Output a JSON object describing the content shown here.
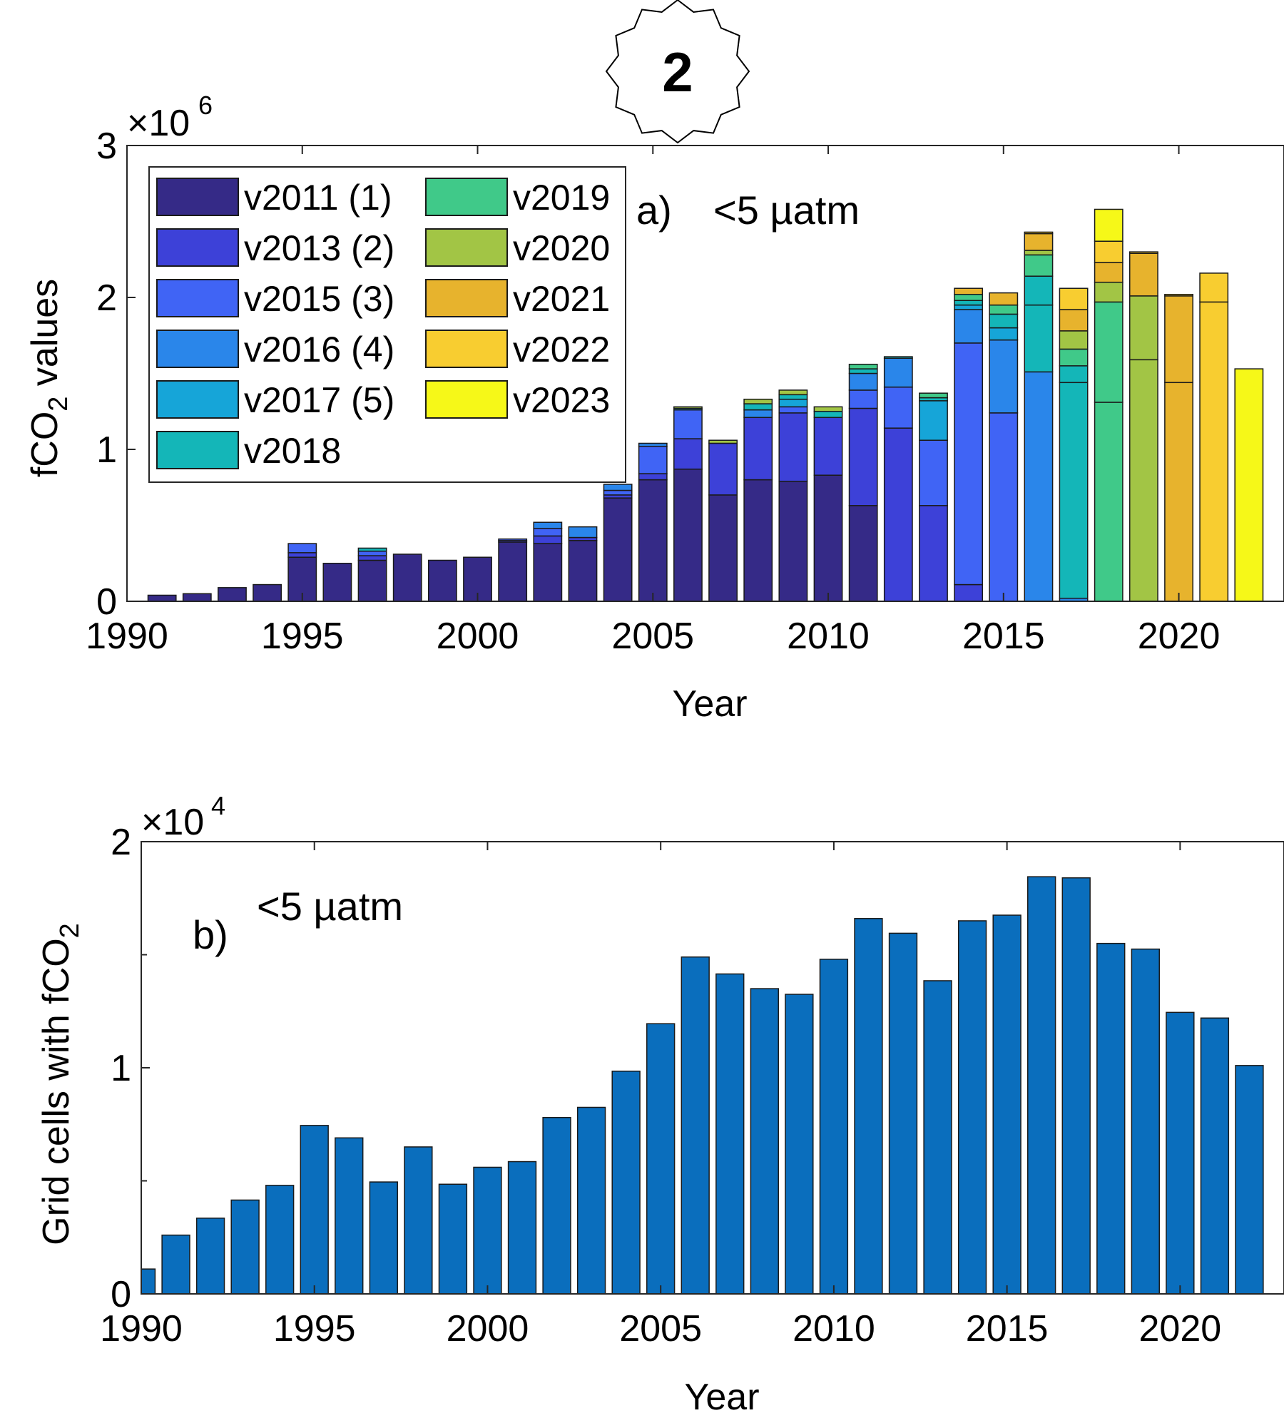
{
  "badge": {
    "text": "2"
  },
  "chart_data": [
    {
      "type": "bar",
      "stacked": true,
      "label": "a)",
      "annotation": "<5 µatm",
      "xlabel": "Year",
      "ylabel_text": "fCO",
      "ylabel_sub": "2",
      "ylabel_tail": " values",
      "exponent_base": "×10",
      "exponent_power": "6",
      "xlim": [
        1990,
        2023
      ],
      "ylim": [
        0,
        3000000
      ],
      "xticks": [
        "1990",
        "1995",
        "2000",
        "2005",
        "2010",
        "2015",
        "2020"
      ],
      "yticks": [
        "0",
        "1",
        "2",
        "3"
      ],
      "grid": false,
      "legend_position": "top-left",
      "x": [
        1991,
        1992,
        1993,
        1994,
        1995,
        1996,
        1997,
        1998,
        1999,
        2000,
        2001,
        2002,
        2003,
        2004,
        2005,
        2006,
        2007,
        2008,
        2009,
        2010,
        2011,
        2012,
        2013,
        2014,
        2015,
        2016,
        2017,
        2018,
        2019,
        2020,
        2021,
        2022
      ],
      "series": [
        {
          "name": "v2011 (1)",
          "color": "#352a87",
          "values": [
            40000,
            50000,
            90000,
            110000,
            290000,
            250000,
            270000,
            310000,
            270000,
            290000,
            390000,
            380000,
            400000,
            680000,
            800000,
            870000,
            700000,
            800000,
            790000,
            830000,
            630000,
            0,
            0,
            0,
            0,
            0,
            0,
            0,
            0,
            0,
            0,
            0
          ]
        },
        {
          "name": "v2013 (2)",
          "color": "#3d41d8",
          "values": [
            0,
            0,
            0,
            0,
            30000,
            0,
            30000,
            0,
            0,
            0,
            10000,
            50000,
            20000,
            20000,
            40000,
            200000,
            340000,
            410000,
            450000,
            380000,
            640000,
            1140000,
            630000,
            110000,
            0,
            0,
            0,
            0,
            0,
            0,
            0,
            0
          ]
        },
        {
          "name": "v2015 (3)",
          "color": "#4064f5",
          "values": [
            0,
            0,
            0,
            0,
            60000,
            0,
            30000,
            0,
            0,
            0,
            10000,
            50000,
            0,
            30000,
            180000,
            190000,
            0,
            0,
            40000,
            0,
            120000,
            270000,
            430000,
            1590000,
            1240000,
            0,
            0,
            0,
            0,
            0,
            0,
            0
          ]
        },
        {
          "name": "v2016 (4)",
          "color": "#2a86ea",
          "values": [
            0,
            0,
            0,
            0,
            0,
            0,
            0,
            0,
            0,
            0,
            0,
            40000,
            70000,
            40000,
            20000,
            0,
            0,
            50000,
            0,
            0,
            110000,
            190000,
            0,
            220000,
            480000,
            1510000,
            20000,
            0,
            0,
            0,
            0,
            0
          ]
        },
        {
          "name": "v2017 (5)",
          "color": "#16a5d8",
          "values": [
            0,
            0,
            0,
            0,
            0,
            0,
            0,
            0,
            0,
            0,
            0,
            0,
            0,
            0,
            0,
            0,
            0,
            0,
            0,
            0,
            0,
            0,
            260000,
            30000,
            80000,
            0,
            0,
            0,
            0,
            0,
            0,
            0
          ]
        },
        {
          "name": "v2018",
          "color": "#14b6b8",
          "values": [
            0,
            0,
            0,
            0,
            0,
            0,
            20000,
            0,
            0,
            0,
            0,
            0,
            0,
            0,
            0,
            0,
            0,
            0,
            0,
            0,
            0,
            0,
            0,
            0,
            0,
            440000,
            1420000,
            0,
            0,
            0,
            0,
            0
          ]
        },
        {
          "name": "v2019",
          "color": "#40c989",
          "values": [
            0,
            0,
            0,
            0,
            0,
            0,
            0,
            0,
            0,
            0,
            0,
            0,
            0,
            0,
            0,
            0,
            0,
            0,
            0,
            0,
            0,
            0,
            0,
            0,
            0,
            0,
            0,
            1310000,
            0,
            0,
            0,
            0
          ]
        },
        {
          "name": "v2020",
          "color": "#a2c545",
          "values": [
            0,
            0,
            0,
            0,
            0,
            0,
            0,
            0,
            0,
            0,
            0,
            0,
            0,
            0,
            0,
            0,
            0,
            0,
            0,
            0,
            0,
            0,
            0,
            0,
            0,
            0,
            0,
            0,
            1590000,
            0,
            0,
            0
          ]
        },
        {
          "name": "v2021",
          "color": "#e7b32d",
          "values": [
            0,
            0,
            0,
            0,
            0,
            0,
            0,
            0,
            0,
            0,
            0,
            0,
            0,
            0,
            0,
            0,
            0,
            0,
            0,
            0,
            0,
            0,
            0,
            0,
            0,
            0,
            0,
            0,
            0,
            1440000,
            0,
            0
          ]
        },
        {
          "name": "v2022",
          "color": "#f8cd30",
          "values": [
            0,
            0,
            0,
            0,
            0,
            0,
            0,
            0,
            0,
            0,
            0,
            0,
            0,
            0,
            0,
            0,
            0,
            0,
            0,
            0,
            0,
            0,
            0,
            0,
            0,
            0,
            0,
            0,
            0,
            0,
            1970000,
            0
          ]
        },
        {
          "name": "v2023",
          "color": "#f6f818",
          "values": [
            0,
            0,
            0,
            0,
            0,
            0,
            0,
            0,
            0,
            0,
            0,
            0,
            0,
            0,
            0,
            0,
            0,
            0,
            0,
            0,
            0,
            0,
            0,
            0,
            0,
            0,
            0,
            0,
            0,
            0,
            0,
            1530000
          ]
        }
      ],
      "upper_layers": {
        "totals": [
          40000,
          50000,
          90000,
          110000,
          380000,
          250000,
          350000,
          310000,
          270000,
          290000,
          420000,
          530000,
          480000,
          770000,
          1050000,
          1320000,
          1080000,
          1300000,
          1370000,
          1300000,
          1520000,
          1630000,
          1380000,
          2070000,
          1960000,
          2300000,
          2340000,
          2440000,
          2300000,
          2020000,
          2160000,
          1530000
        ],
        "note_series": [
          {
            "name": "v2017 (5)",
            "values": [
              0,
              0,
              0,
              0,
              0,
              0,
              0,
              0,
              0,
              0,
              0,
              0,
              0,
              0,
              0,
              10000,
              0,
              0,
              50000,
              0,
              0,
              0,
              0,
              0,
              0,
              0,
              0,
              0,
              0,
              0,
              0,
              0
            ]
          },
          {
            "name": "v2018",
            "values": [
              0,
              0,
              0,
              0,
              0,
              0,
              0,
              0,
              0,
              0,
              0,
              0,
              0,
              0,
              0,
              0,
              0,
              40000,
              30000,
              40000,
              30000,
              10000,
              20000,
              30000,
              90000,
              190000,
              110000,
              0,
              0,
              0,
              0,
              0
            ]
          },
          {
            "name": "v2019",
            "values": [
              0,
              0,
              0,
              0,
              0,
              0,
              0,
              0,
              0,
              0,
              0,
              0,
              0,
              0,
              0,
              0,
              0,
              0,
              0,
              0,
              30000,
              0,
              30000,
              40000,
              60000,
              140000,
              110000,
              660000,
              0,
              0,
              0,
              0
            ]
          },
          {
            "name": "v2020",
            "values": [
              0,
              0,
              0,
              0,
              0,
              0,
              0,
              0,
              0,
              0,
              0,
              0,
              0,
              0,
              0,
              10000,
              20000,
              30000,
              30000,
              30000,
              0,
              0,
              0,
              0,
              0,
              30000,
              120000,
              130000,
              420000,
              0,
              0,
              0
            ]
          },
          {
            "name": "v2021",
            "values": [
              0,
              0,
              0,
              0,
              0,
              0,
              0,
              0,
              0,
              0,
              0,
              0,
              0,
              0,
              0,
              0,
              0,
              0,
              0,
              0,
              0,
              0,
              0,
              40000,
              80000,
              110000,
              140000,
              130000,
              280000,
              570000,
              0,
              0
            ]
          },
          {
            "name": "v2022",
            "values": [
              0,
              0,
              0,
              0,
              0,
              0,
              0,
              0,
              0,
              0,
              0,
              0,
              0,
              0,
              0,
              0,
              0,
              0,
              0,
              0,
              0,
              0,
              0,
              0,
              0,
              10000,
              140000,
              140000,
              10000,
              10000,
              190000,
              0
            ]
          },
          {
            "name": "v2023",
            "values": [
              0,
              0,
              0,
              0,
              0,
              0,
              0,
              0,
              0,
              0,
              0,
              0,
              0,
              0,
              0,
              0,
              0,
              0,
              0,
              0,
              0,
              0,
              0,
              0,
              0,
              0,
              0,
              210000,
              0,
              0,
              0,
              0
            ]
          }
        ]
      }
    },
    {
      "type": "bar",
      "label": "b)",
      "annotation": "<5 µatm",
      "xlabel": "Year",
      "ylabel_text": "Grid cells with fCO",
      "ylabel_sub": "2",
      "exponent_base": "×10",
      "exponent_power": "4",
      "xlim": [
        1990,
        2023
      ],
      "ylim": [
        0,
        20000
      ],
      "xticks": [
        "1990",
        "1995",
        "2000",
        "2005",
        "2010",
        "2015",
        "2020"
      ],
      "yticks": [
        "0",
        "1",
        "2"
      ],
      "grid": false,
      "color": "#0a6ebd",
      "x": [
        1990,
        1991,
        1992,
        1993,
        1994,
        1995,
        1996,
        1997,
        1998,
        1999,
        2000,
        2001,
        2002,
        2003,
        2004,
        2005,
        2006,
        2007,
        2008,
        2009,
        2010,
        2011,
        2012,
        2013,
        2014,
        2015,
        2016,
        2017,
        2018,
        2019,
        2020,
        2021,
        2022
      ],
      "values": [
        1100,
        2600,
        3350,
        4150,
        4800,
        7450,
        6900,
        4950,
        6500,
        4850,
        5600,
        5850,
        7800,
        8250,
        9850,
        11950,
        14900,
        14150,
        13500,
        13250,
        14800,
        16600,
        15950,
        13850,
        16500,
        16750,
        18450,
        18400,
        15500,
        15250,
        12450,
        12200,
        10100
      ]
    }
  ]
}
